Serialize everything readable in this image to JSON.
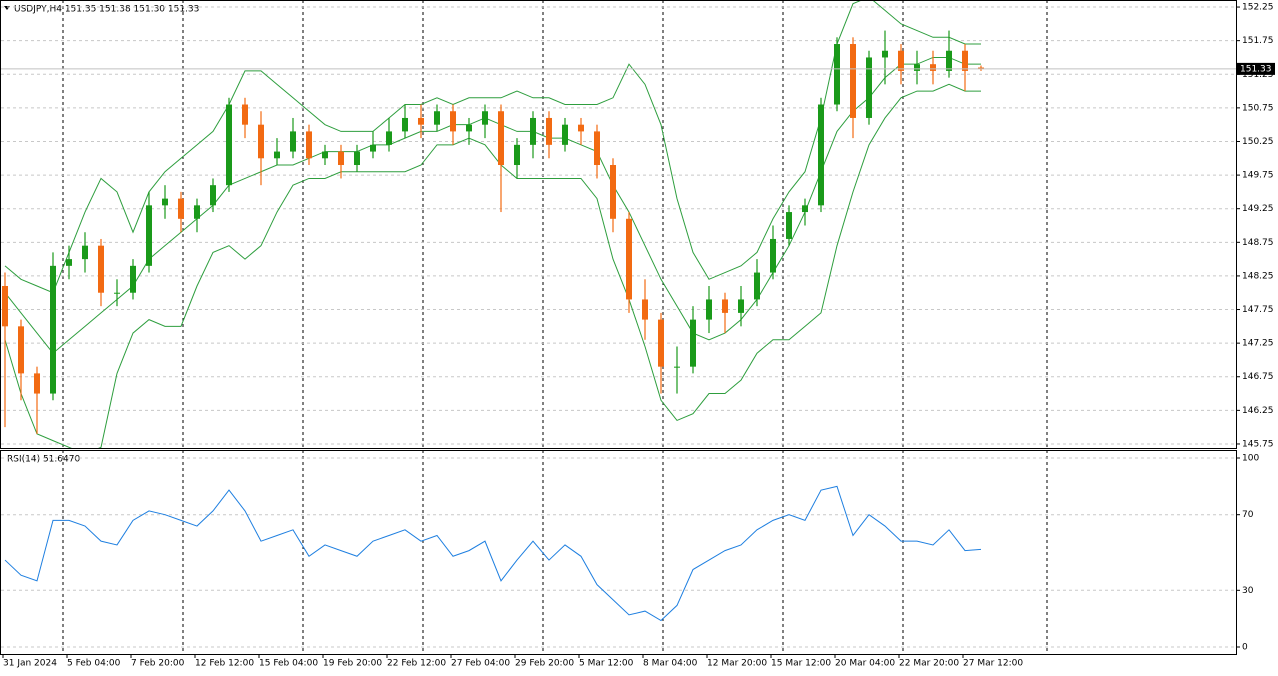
{
  "chart_data": [
    {
      "type": "candlestick",
      "title": "USDJPY,H4  151.35 151.38 151.30 151.33",
      "categories": [
        "31 Jan 2024",
        null,
        null,
        null,
        "5 Feb 04:00",
        null,
        null,
        null,
        "7 Feb 20:00",
        null,
        null,
        null,
        "12 Feb 12:00",
        null,
        null,
        null,
        "15 Feb 04:00",
        null,
        null,
        null,
        "19 Feb 20:00",
        null,
        null,
        null,
        "22 Feb 12:00",
        null,
        null,
        null,
        "27 Feb 04:00",
        null,
        null,
        null,
        "29 Feb 20:00",
        null,
        null,
        null,
        "5 Mar 12:00",
        null,
        null,
        null,
        "8 Mar 04:00",
        null,
        null,
        null,
        "12 Mar 20:00",
        null,
        null,
        null,
        "15 Mar 12:00",
        null,
        null,
        null,
        "20 Mar 04:00",
        null,
        null,
        null,
        "22 Mar 20:00",
        null,
        null,
        null,
        "27 Mar 12:00",
        null
      ],
      "open": [
        148.1,
        147.5,
        146.8,
        146.5,
        148.4,
        148.5,
        148.7,
        148.0,
        148.0,
        148.4,
        149.3,
        149.4,
        149.1,
        149.3,
        149.6,
        150.8,
        150.5,
        150.0,
        150.1,
        150.4,
        150.0,
        150.1,
        149.9,
        150.1,
        150.2,
        150.4,
        150.6,
        150.5,
        150.7,
        150.4,
        150.5,
        150.7,
        149.9,
        150.2,
        150.6,
        150.2,
        150.5,
        150.4,
        149.9,
        149.1,
        147.9,
        147.6,
        146.9,
        146.9,
        147.6,
        147.9,
        147.7,
        147.9,
        148.3,
        148.8,
        149.2,
        149.3,
        150.8,
        151.7,
        150.6,
        151.5,
        151.6,
        151.3,
        151.4,
        151.3,
        151.6,
        151.35
      ],
      "high": [
        148.3,
        147.6,
        146.9,
        148.6,
        148.7,
        148.9,
        148.8,
        148.2,
        148.5,
        149.5,
        149.6,
        149.5,
        149.4,
        149.7,
        150.9,
        150.9,
        150.7,
        150.3,
        150.6,
        150.5,
        150.2,
        150.2,
        150.2,
        150.4,
        150.6,
        150.8,
        150.8,
        150.8,
        150.8,
        150.6,
        150.8,
        150.8,
        150.3,
        150.7,
        150.7,
        150.6,
        150.6,
        150.5,
        150.0,
        149.2,
        148.2,
        147.7,
        147.2,
        147.8,
        148.1,
        148.0,
        148.1,
        148.5,
        149.0,
        149.3,
        149.4,
        150.9,
        151.8,
        151.8,
        151.6,
        151.9,
        151.7,
        151.6,
        151.6,
        151.9,
        151.7,
        151.38
      ],
      "low": [
        146.0,
        146.4,
        145.9,
        146.4,
        148.2,
        148.3,
        147.8,
        147.8,
        147.9,
        148.3,
        149.1,
        148.9,
        148.9,
        149.2,
        149.5,
        150.3,
        149.6,
        149.9,
        150.0,
        149.9,
        149.9,
        149.7,
        149.8,
        150.0,
        150.1,
        150.3,
        150.3,
        150.4,
        150.2,
        150.2,
        150.3,
        149.2,
        149.7,
        150.0,
        150.0,
        150.1,
        150.2,
        149.7,
        148.9,
        147.7,
        147.3,
        146.5,
        146.5,
        146.8,
        147.4,
        147.4,
        147.5,
        147.8,
        148.2,
        148.7,
        149.0,
        149.2,
        150.7,
        150.3,
        150.5,
        151.1,
        151.1,
        151.1,
        151.1,
        151.2,
        151.0,
        151.3
      ],
      "close": [
        147.5,
        146.8,
        146.5,
        148.4,
        148.5,
        148.7,
        148.0,
        148.0,
        148.4,
        149.3,
        149.4,
        149.1,
        149.3,
        149.6,
        150.8,
        150.5,
        150.0,
        150.1,
        150.4,
        150.0,
        150.1,
        149.9,
        150.1,
        150.2,
        150.4,
        150.6,
        150.5,
        150.7,
        150.4,
        150.5,
        150.7,
        149.9,
        150.2,
        150.6,
        150.2,
        150.5,
        150.4,
        149.9,
        149.1,
        147.9,
        147.6,
        146.9,
        146.9,
        147.6,
        147.9,
        147.7,
        147.9,
        148.3,
        148.8,
        149.2,
        149.3,
        150.8,
        151.7,
        150.6,
        151.5,
        151.6,
        151.3,
        151.4,
        151.3,
        151.6,
        151.3,
        151.33
      ],
      "up_color": "#1a9a1a",
      "down_color": "#f26a12",
      "bands": {
        "color": "#2e9e3e",
        "upper": [
          148.4,
          148.2,
          148.1,
          148.0,
          148.6,
          149.2,
          149.7,
          149.5,
          148.9,
          149.5,
          149.8,
          150.0,
          150.2,
          150.4,
          150.8,
          151.3,
          151.3,
          151.1,
          150.9,
          150.7,
          150.5,
          150.4,
          150.4,
          150.4,
          150.6,
          150.8,
          150.8,
          150.9,
          150.8,
          150.9,
          150.9,
          150.9,
          151.0,
          150.9,
          150.9,
          150.8,
          150.8,
          150.8,
          150.9,
          151.4,
          151.1,
          150.5,
          149.4,
          148.6,
          148.2,
          148.3,
          148.4,
          148.6,
          149.1,
          149.5,
          149.8,
          150.6,
          151.7,
          152.3,
          152.4,
          152.2,
          152.0,
          151.9,
          151.8,
          151.8,
          151.7,
          151.7
        ],
        "middle": [
          148.0,
          147.7,
          147.4,
          147.1,
          147.3,
          147.5,
          147.7,
          147.9,
          148.1,
          148.5,
          148.7,
          148.9,
          149.1,
          149.3,
          149.6,
          149.7,
          149.8,
          149.9,
          149.9,
          150.0,
          150.1,
          150.1,
          150.1,
          150.2,
          150.2,
          150.3,
          150.4,
          150.4,
          150.5,
          150.5,
          150.6,
          150.5,
          150.4,
          150.4,
          150.3,
          150.3,
          150.2,
          150.1,
          149.6,
          149.2,
          148.7,
          148.2,
          147.8,
          147.4,
          147.3,
          147.4,
          147.6,
          147.9,
          148.3,
          148.7,
          149.2,
          149.8,
          150.4,
          150.7,
          150.9,
          151.2,
          151.4,
          151.4,
          151.5,
          151.5,
          151.4,
          151.4
        ],
        "lower": [
          147.3,
          146.5,
          145.9,
          145.8,
          145.7,
          145.6,
          145.7,
          146.8,
          147.4,
          147.6,
          147.5,
          147.5,
          148.1,
          148.6,
          148.7,
          148.5,
          148.7,
          149.2,
          149.6,
          149.7,
          149.7,
          149.8,
          149.8,
          149.8,
          149.8,
          149.8,
          149.9,
          150.2,
          150.2,
          150.3,
          150.2,
          149.9,
          149.7,
          149.7,
          149.7,
          149.7,
          149.7,
          149.4,
          148.5,
          147.9,
          147.2,
          146.4,
          146.1,
          146.2,
          146.5,
          146.5,
          146.7,
          147.1,
          147.3,
          147.3,
          147.5,
          147.7,
          148.7,
          149.5,
          150.2,
          150.6,
          150.9,
          151.0,
          151.0,
          151.1,
          151.0,
          151.0
        ]
      },
      "last_price": 151.33,
      "ylim": [
        145.69,
        152.34
      ],
      "yticks": [
        152.25,
        151.75,
        151.25,
        150.75,
        150.25,
        149.75,
        149.25,
        148.75,
        148.25,
        147.75,
        147.25,
        146.75,
        146.25,
        145.75
      ],
      "grid": true
    },
    {
      "type": "line",
      "title": "RSI(14) 51.6470",
      "color": "#1e7fe0",
      "values": [
        46,
        38,
        35,
        67,
        67,
        64,
        56,
        54,
        67,
        72,
        70,
        67,
        64,
        72,
        83,
        72,
        56,
        59,
        62,
        48,
        54,
        51,
        48,
        56,
        59,
        62,
        56,
        59,
        48,
        51,
        56,
        35,
        46,
        56,
        46,
        54,
        48,
        33,
        25,
        17,
        19,
        14,
        22,
        41,
        46,
        51,
        54,
        62,
        67,
        70,
        67,
        83,
        85,
        59,
        70,
        64,
        56,
        56,
        54,
        62,
        51,
        51.647
      ],
      "ylim": [
        -3.7,
        103.7
      ],
      "yticks": [
        100,
        70,
        30,
        0
      ],
      "grid": true
    }
  ]
}
